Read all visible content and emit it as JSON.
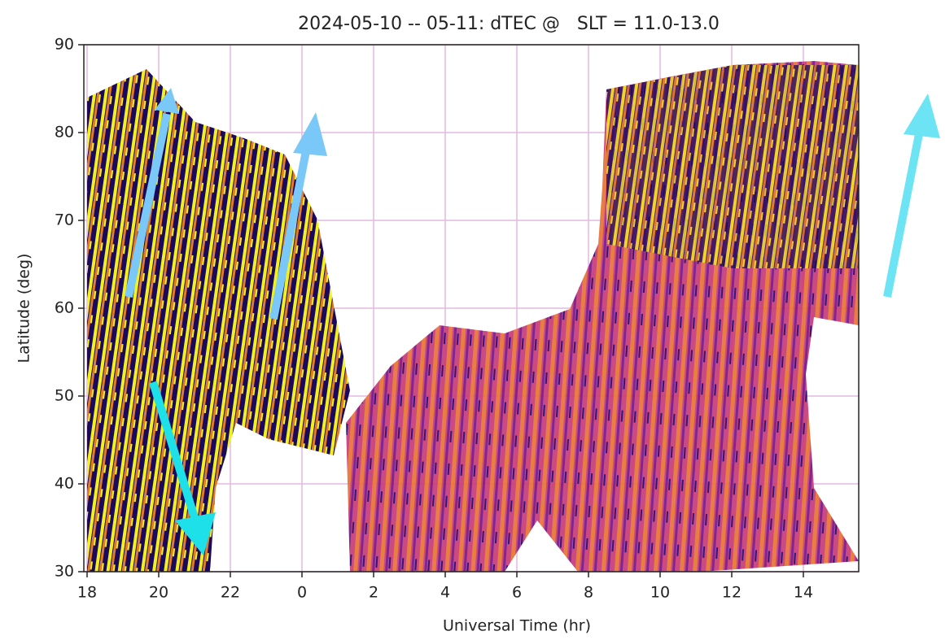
{
  "chart_data": {
    "type": "heatmap",
    "title": "2024-05-10 -- 05-11: dTEC @   SLT = 11.0-13.0",
    "xlabel": "Universal Time (hr)",
    "ylabel": "Latitude (deg)",
    "xlim": [
      18,
      39.5
    ],
    "xticks": [
      18,
      20,
      22,
      {
        "value": 24,
        "label": "0"
      },
      {
        "value": 26,
        "label": "2"
      },
      {
        "value": 28,
        "label": "4"
      },
      {
        "value": 30,
        "label": "6"
      },
      {
        "value": 32,
        "label": "8"
      },
      {
        "value": 34,
        "label": "10"
      },
      {
        "value": 36,
        "label": "12"
      },
      {
        "value": 38,
        "label": "14"
      }
    ],
    "ylim": [
      30,
      90
    ],
    "yticks": [
      30,
      40,
      50,
      60,
      70,
      80,
      90
    ],
    "grid": true,
    "grid_color": "#e2b8e2"
  }
}
